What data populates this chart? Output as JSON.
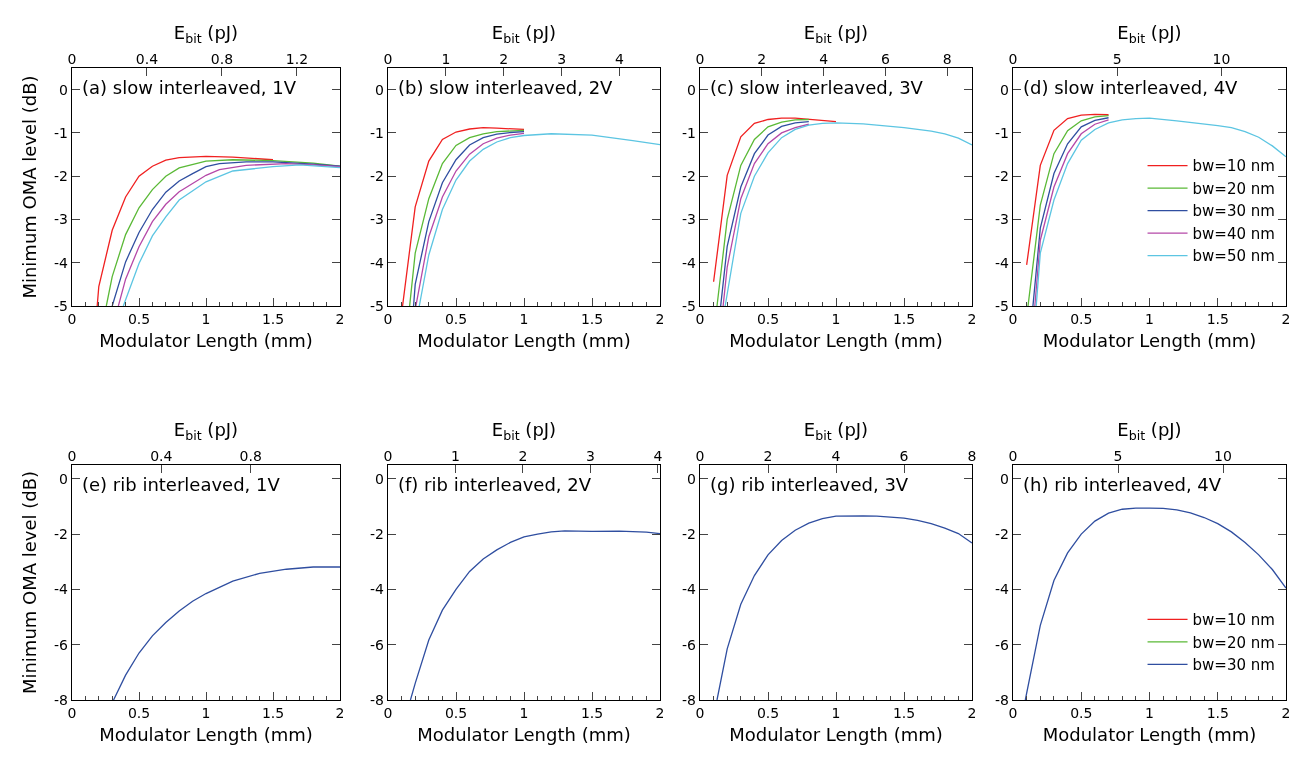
{
  "chart_data": [
    {
      "type": "line",
      "annotations": [
        "(a) slow interleaved, 1V"
      ],
      "xlabel": "Modulator Length (mm)",
      "ylabel": "Minimum OMA level (dB)",
      "x2label": "E$_{bit}$ (pJ)",
      "xlim": [
        0,
        2
      ],
      "xticks": [
        0,
        0.5,
        1,
        1.5,
        2
      ],
      "x2lim": [
        0,
        1.43
      ],
      "x2ticks": [
        0,
        0.4,
        0.8,
        1.2
      ],
      "ylim": [
        -5,
        0.5
      ],
      "yticks": [
        -5,
        -4,
        -3,
        -2,
        -1,
        0
      ],
      "series": [
        {
          "color": "#f02020",
          "x": [
            0.188,
            0.2,
            0.3,
            0.4,
            0.5,
            0.6,
            0.7,
            0.8,
            1.0,
            1.2,
            1.5
          ],
          "values": [
            -5,
            -4.55,
            -3.25,
            -2.48,
            -2.0,
            -1.77,
            -1.63,
            -1.57,
            -1.54,
            -1.56,
            -1.62
          ]
        },
        {
          "color": "#5ab936",
          "x": [
            0.256,
            0.3,
            0.4,
            0.5,
            0.6,
            0.7,
            0.8,
            1.0,
            1.2,
            1.5,
            1.8,
            2.0
          ],
          "values": [
            -5,
            -4.32,
            -3.35,
            -2.73,
            -2.31,
            -2.0,
            -1.81,
            -1.65,
            -1.62,
            -1.64,
            -1.7,
            -1.77
          ]
        },
        {
          "color": "#2f4ea0",
          "x": [
            0.3,
            0.4,
            0.5,
            0.6,
            0.7,
            0.8,
            0.9,
            1.0,
            1.1,
            1.3,
            1.5,
            1.8,
            2.0
          ],
          "values": [
            -5,
            -3.98,
            -3.3,
            -2.77,
            -2.37,
            -2.11,
            -1.94,
            -1.78,
            -1.71,
            -1.67,
            -1.67,
            -1.72,
            -1.77
          ]
        },
        {
          "color": "#b548a8",
          "x": [
            0.346,
            0.4,
            0.5,
            0.6,
            0.7,
            0.8,
            1.0,
            1.1,
            1.3,
            1.6,
            1.8,
            2.0
          ],
          "values": [
            -5,
            -4.38,
            -3.63,
            -3.05,
            -2.65,
            -2.36,
            -1.98,
            -1.85,
            -1.75,
            -1.71,
            -1.74,
            -1.78
          ]
        },
        {
          "color": "#5cc5e2",
          "x": [
            0.383,
            0.5,
            0.6,
            0.7,
            0.8,
            1.0,
            1.2,
            1.5,
            1.7,
            2.0
          ],
          "values": [
            -5,
            -4.02,
            -3.38,
            -2.94,
            -2.55,
            -2.13,
            -1.88,
            -1.78,
            -1.74,
            -1.8
          ]
        }
      ]
    },
    {
      "type": "line",
      "annotations": [
        "(b) slow interleaved, 2V"
      ],
      "xlabel": "Modulator Length (mm)",
      "x2label": "E$_{bit}$ (pJ)",
      "xlim": [
        0,
        2
      ],
      "xticks": [
        0,
        0.5,
        1,
        1.5,
        2
      ],
      "x2lim": [
        0,
        4.7
      ],
      "x2ticks": [
        0,
        1,
        2,
        3,
        4
      ],
      "ylim": [
        -5,
        0.5
      ],
      "yticks": [
        -5,
        -4,
        -3,
        -2,
        -1,
        0
      ],
      "series": [
        {
          "color": "#f02020",
          "x": [
            0.107,
            0.2,
            0.3,
            0.4,
            0.5,
            0.6,
            0.7,
            0.8,
            1.0
          ],
          "values": [
            -5,
            -2.71,
            -1.65,
            -1.15,
            -0.98,
            -0.91,
            -0.88,
            -0.89,
            -0.92
          ]
        },
        {
          "color": "#5ab936",
          "x": [
            0.159,
            0.2,
            0.3,
            0.4,
            0.5,
            0.6,
            0.7,
            0.8,
            1.0
          ],
          "values": [
            -5,
            -3.78,
            -2.52,
            -1.71,
            -1.29,
            -1.11,
            -1.02,
            -0.97,
            -0.94
          ]
        },
        {
          "color": "#2f4ea0",
          "x": [
            0.188,
            0.2,
            0.3,
            0.4,
            0.5,
            0.6,
            0.7,
            0.8,
            0.9,
            1.0
          ],
          "values": [
            -5,
            -4.5,
            -3.05,
            -2.15,
            -1.62,
            -1.28,
            -1.11,
            -1.03,
            -0.99,
            -0.97
          ]
        },
        {
          "color": "#b548a8",
          "x": [
            0.205,
            0.3,
            0.4,
            0.5,
            0.6,
            0.7,
            0.8,
            0.9,
            1.0
          ],
          "values": [
            -5,
            -3.4,
            -2.48,
            -1.88,
            -1.49,
            -1.25,
            -1.12,
            -1.05,
            -1.01
          ]
        },
        {
          "color": "#5cc5e2",
          "x": [
            0.23,
            0.3,
            0.4,
            0.5,
            0.6,
            0.7,
            0.8,
            0.9,
            1.0,
            1.2,
            1.5,
            1.8,
            2.0
          ],
          "values": [
            -5,
            -3.82,
            -2.77,
            -2.09,
            -1.65,
            -1.38,
            -1.21,
            -1.11,
            -1.06,
            -1.02,
            -1.05,
            -1.18,
            -1.27
          ]
        }
      ]
    },
    {
      "type": "line",
      "annotations": [
        "(c) slow interleaved, 3V"
      ],
      "xlabel": "Modulator Length (mm)",
      "x2label": "E$_{bit}$ (pJ)",
      "xlim": [
        0,
        2
      ],
      "xticks": [
        0,
        0.5,
        1,
        1.5,
        2
      ],
      "x2lim": [
        0,
        8.8
      ],
      "x2ticks": [
        0,
        2,
        4,
        6,
        8
      ],
      "ylim": [
        -5,
        0.5
      ],
      "yticks": [
        -5,
        -4,
        -3,
        -2,
        -1,
        0
      ],
      "series": [
        {
          "color": "#f02020",
          "x": [
            0.1,
            0.2,
            0.3,
            0.4,
            0.5,
            0.6,
            0.7,
            1.0
          ],
          "values": [
            -4.44,
            -1.98,
            -1.09,
            -0.78,
            -0.69,
            -0.66,
            -0.66,
            -0.74
          ]
        },
        {
          "color": "#5ab936",
          "x": [
            0.125,
            0.2,
            0.3,
            0.4,
            0.5,
            0.6,
            0.7,
            0.8
          ],
          "values": [
            -5,
            -3.0,
            -1.75,
            -1.15,
            -0.86,
            -0.75,
            -0.7,
            -0.69
          ]
        },
        {
          "color": "#2f4ea0",
          "x": [
            0.152,
            0.2,
            0.3,
            0.4,
            0.5,
            0.6,
            0.7,
            0.8
          ],
          "values": [
            -5,
            -3.62,
            -2.25,
            -1.48,
            -1.05,
            -0.85,
            -0.77,
            -0.74
          ]
        },
        {
          "color": "#b548a8",
          "x": [
            0.17,
            0.2,
            0.3,
            0.4,
            0.5,
            0.6,
            0.7,
            0.8
          ],
          "values": [
            -5,
            -4.1,
            -2.52,
            -1.71,
            -1.25,
            -1.0,
            -0.88,
            -0.8
          ]
        },
        {
          "color": "#5cc5e2",
          "x": [
            0.185,
            0.3,
            0.4,
            0.5,
            0.6,
            0.7,
            0.8,
            0.9,
            1.0,
            1.2,
            1.5,
            1.7,
            1.8,
            1.9,
            2.0
          ],
          "values": [
            -5,
            -2.86,
            -2.0,
            -1.46,
            -1.11,
            -0.92,
            -0.82,
            -0.78,
            -0.77,
            -0.79,
            -0.88,
            -0.96,
            -1.02,
            -1.12,
            -1.28
          ]
        }
      ]
    },
    {
      "type": "line",
      "annotations": [
        "(d) slow interleaved, 4V"
      ],
      "xlabel": "Modulator Length (mm)",
      "x2label": "E$_{bit}$ (pJ)",
      "xlim": [
        0,
        2
      ],
      "xticks": [
        0,
        0.5,
        1,
        1.5,
        2
      ],
      "x2lim": [
        0,
        13.1
      ],
      "x2ticks": [
        0,
        5,
        10
      ],
      "ylim": [
        -5,
        0.5
      ],
      "yticks": [
        -5,
        -4,
        -3,
        -2,
        -1,
        0
      ],
      "legend": "right",
      "series": [
        {
          "name": "bw=10 nm",
          "color": "#f02020",
          "x": [
            0.1,
            0.2,
            0.3,
            0.4,
            0.5,
            0.6,
            0.7
          ],
          "values": [
            -4.05,
            -1.75,
            -0.94,
            -0.67,
            -0.59,
            -0.57,
            -0.58
          ]
        },
        {
          "name": "bw=20 nm",
          "color": "#5ab936",
          "x": [
            0.11,
            0.2,
            0.3,
            0.4,
            0.5,
            0.6,
            0.7
          ],
          "values": [
            -5,
            -2.67,
            -1.48,
            -0.95,
            -0.72,
            -0.63,
            -0.6
          ]
        },
        {
          "name": "bw=30 nm",
          "color": "#2f4ea0",
          "x": [
            0.146,
            0.2,
            0.3,
            0.4,
            0.5,
            0.6,
            0.7
          ],
          "values": [
            -5,
            -3.2,
            -1.94,
            -1.25,
            -0.86,
            -0.71,
            -0.65
          ]
        },
        {
          "name": "bw=40 nm",
          "color": "#b548a8",
          "x": [
            0.16,
            0.2,
            0.3,
            0.4,
            0.5,
            0.6,
            0.7
          ],
          "values": [
            -5,
            -3.48,
            -2.25,
            -1.48,
            -1.02,
            -0.8,
            -0.7
          ]
        },
        {
          "name": "bw=50 nm",
          "color": "#5cc5e2",
          "x": [
            0.17,
            0.2,
            0.3,
            0.4,
            0.5,
            0.6,
            0.7,
            0.8,
            0.9,
            1.0,
            1.2,
            1.5,
            1.6,
            1.7,
            1.8,
            1.9,
            2.0
          ],
          "values": [
            -5,
            -3.78,
            -2.55,
            -1.71,
            -1.17,
            -0.92,
            -0.77,
            -0.7,
            -0.67,
            -0.66,
            -0.72,
            -0.83,
            -0.88,
            -0.97,
            -1.1,
            -1.3,
            -1.55
          ]
        }
      ]
    },
    {
      "type": "line",
      "annotations": [
        "(e) rib interleaved, 1V"
      ],
      "xlabel": "Modulator Length (mm)",
      "ylabel": "Minimum OMA level (dB)",
      "x2label": "E$_{bit}$ (pJ)",
      "xlim": [
        0,
        2
      ],
      "xticks": [
        0,
        0.5,
        1,
        1.5,
        2
      ],
      "x2lim": [
        0,
        1.2
      ],
      "x2ticks": [
        0,
        0.4,
        0.8
      ],
      "ylim": [
        -8,
        0.5
      ],
      "yticks": [
        -8,
        -6,
        -4,
        -2,
        0
      ],
      "series": [
        {
          "color": "#2f4ea0",
          "x": [
            0.31,
            0.4,
            0.5,
            0.6,
            0.7,
            0.8,
            0.9,
            1.0,
            1.2,
            1.4,
            1.6,
            1.8,
            2.0
          ],
          "values": [
            -8,
            -7.1,
            -6.3,
            -5.68,
            -5.2,
            -4.78,
            -4.43,
            -4.15,
            -3.7,
            -3.42,
            -3.27,
            -3.19,
            -3.19
          ]
        }
      ]
    },
    {
      "type": "line",
      "annotations": [
        "(f) rib interleaved, 2V"
      ],
      "xlabel": "Modulator Length (mm)",
      "x2label": "E$_{bit}$ (pJ)",
      "xlim": [
        0,
        2
      ],
      "xticks": [
        0,
        0.5,
        1,
        1.5,
        2
      ],
      "x2lim": [
        0,
        4.03
      ],
      "x2ticks": [
        0,
        1,
        2,
        3,
        4
      ],
      "ylim": [
        -8,
        0.5
      ],
      "yticks": [
        -8,
        -6,
        -4,
        -2,
        0
      ],
      "series": [
        {
          "color": "#2f4ea0",
          "x": [
            0.165,
            0.2,
            0.3,
            0.4,
            0.5,
            0.6,
            0.7,
            0.8,
            0.9,
            1.0,
            1.1,
            1.2,
            1.3,
            1.5,
            1.7,
            1.9,
            2.0
          ],
          "values": [
            -8,
            -7.4,
            -5.83,
            -4.75,
            -4.0,
            -3.35,
            -2.9,
            -2.57,
            -2.3,
            -2.1,
            -2.0,
            -1.92,
            -1.88,
            -1.9,
            -1.89,
            -1.93,
            -1.98
          ]
        }
      ]
    },
    {
      "type": "line",
      "annotations": [
        "(g) rib interleaved, 3V"
      ],
      "xlabel": "Modulator Length (mm)",
      "x2label": "E$_{bit}$ (pJ)",
      "xlim": [
        0,
        2
      ],
      "xticks": [
        0,
        0.5,
        1,
        1.5,
        2
      ],
      "x2lim": [
        0,
        8
      ],
      "x2ticks": [
        0,
        2,
        4,
        6,
        8
      ],
      "ylim": [
        -8,
        0.5
      ],
      "yticks": [
        -8,
        -6,
        -4,
        -2,
        0
      ],
      "series": [
        {
          "color": "#2f4ea0",
          "x": [
            0.125,
            0.2,
            0.3,
            0.4,
            0.5,
            0.6,
            0.7,
            0.8,
            0.9,
            1.0,
            1.2,
            1.3,
            1.5,
            1.6,
            1.7,
            1.8,
            1.9,
            2.0
          ],
          "values": [
            -8,
            -6.15,
            -4.54,
            -3.5,
            -2.75,
            -2.23,
            -1.86,
            -1.6,
            -1.44,
            -1.35,
            -1.34,
            -1.35,
            -1.42,
            -1.5,
            -1.62,
            -1.78,
            -1.98,
            -2.32
          ]
        }
      ]
    },
    {
      "type": "line",
      "annotations": [
        "(h) rib interleaved, 4V"
      ],
      "xlabel": "Modulator Length (mm)",
      "x2label": "E$_{bit}$ (pJ)",
      "xlim": [
        0,
        2
      ],
      "xticks": [
        0,
        0.5,
        1,
        1.5,
        2
      ],
      "x2lim": [
        0,
        13
      ],
      "x2ticks": [
        0,
        5,
        10
      ],
      "ylim": [
        -8,
        0.5
      ],
      "yticks": [
        -8,
        -6,
        -4,
        -2,
        0
      ],
      "legend": "bottom right",
      "series": [
        {
          "name": "bw=10 nm",
          "color": "#f02020",
          "values": [
            null
          ]
        },
        {
          "name": "bw=20 nm",
          "color": "#5ab936",
          "values": [
            null
          ]
        },
        {
          "name": "bw=30 nm",
          "color": "#2f4ea0",
          "x": [
            0.09,
            0.2,
            0.3,
            0.4,
            0.5,
            0.6,
            0.7,
            0.8,
            0.9,
            1.0,
            1.1,
            1.2,
            1.3,
            1.4,
            1.5,
            1.6,
            1.7,
            1.8,
            1.9,
            2.0
          ],
          "values": [
            -8,
            -5.3,
            -3.68,
            -2.68,
            -2.0,
            -1.53,
            -1.24,
            -1.1,
            -1.06,
            -1.06,
            -1.07,
            -1.12,
            -1.23,
            -1.4,
            -1.62,
            -1.92,
            -2.3,
            -2.75,
            -3.28,
            -3.95
          ]
        }
      ]
    }
  ]
}
